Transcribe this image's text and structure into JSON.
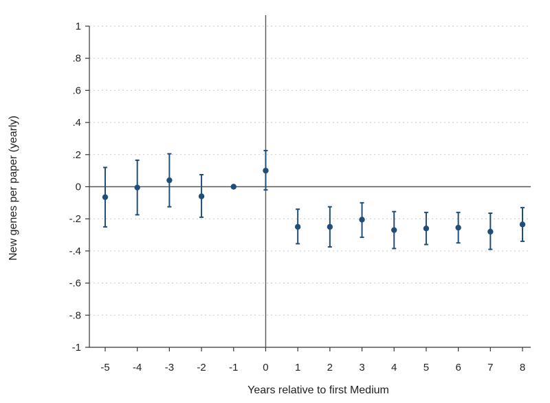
{
  "chart_data": {
    "type": "scatter",
    "title": "",
    "xlabel": "Years relative to first Medium",
    "ylabel": "New genes per paper (yearly)",
    "xlim": [
      -5,
      8
    ],
    "ylim": [
      -1,
      1
    ],
    "x_ticks": [
      -5,
      -4,
      -3,
      -2,
      -1,
      0,
      1,
      2,
      3,
      4,
      5,
      6,
      7,
      8
    ],
    "x_tick_labels": [
      "-5",
      "-4",
      "-3",
      "-2",
      "-1",
      "0",
      "1",
      "2",
      "3",
      "4",
      "5",
      "6",
      "7",
      "8"
    ],
    "y_ticks": [
      1,
      0.8,
      0.6,
      0.4,
      0.2,
      0,
      -0.2,
      -0.4,
      -0.6,
      -0.8,
      -1
    ],
    "y_tick_labels": [
      "1",
      ".8",
      ".6",
      ".4",
      ".2",
      "0",
      "-.2",
      "-.4",
      "-.6",
      "-.8",
      "-1"
    ],
    "grid": true,
    "reference_lines": {
      "x": 0,
      "y": 0
    },
    "color": "#1f4e79",
    "series": [
      {
        "x": [
          -5,
          -4,
          -3,
          -2,
          -1,
          0,
          1,
          2,
          3,
          4,
          5,
          6,
          7,
          8
        ],
        "y": [
          -0.065,
          -0.005,
          0.04,
          -0.06,
          0.0,
          0.1,
          -0.25,
          -0.25,
          -0.205,
          -0.27,
          -0.26,
          -0.255,
          -0.28,
          -0.235
        ],
        "lower": [
          -0.25,
          -0.175,
          -0.125,
          -0.19,
          null,
          -0.02,
          -0.355,
          -0.375,
          -0.315,
          -0.385,
          -0.36,
          -0.35,
          -0.39,
          -0.34
        ],
        "upper": [
          0.12,
          0.165,
          0.205,
          0.075,
          null,
          0.225,
          -0.14,
          -0.125,
          -0.1,
          -0.155,
          -0.16,
          -0.16,
          -0.165,
          -0.13
        ]
      }
    ]
  }
}
